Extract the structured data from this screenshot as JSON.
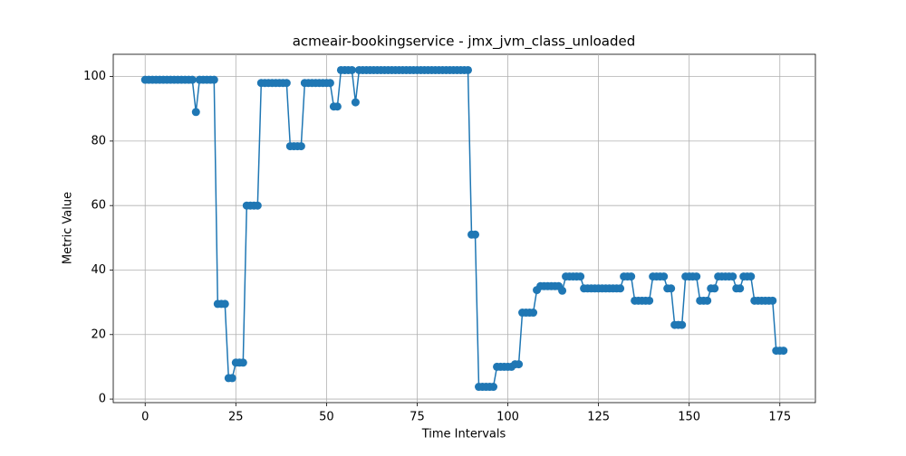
{
  "chart_data": {
    "type": "line",
    "title": "acmeair-bookingservice - jmx_jvm_class_unloaded",
    "xlabel": "Time Intervals",
    "ylabel": "Metric Value",
    "x": [
      0,
      1,
      2,
      3,
      4,
      5,
      6,
      7,
      8,
      9,
      10,
      11,
      12,
      13,
      14,
      15,
      16,
      17,
      18,
      19,
      20,
      21,
      22,
      23,
      24,
      25,
      26,
      27,
      28,
      29,
      30,
      31,
      32,
      33,
      34,
      35,
      36,
      37,
      38,
      39,
      40,
      41,
      42,
      43,
      44,
      45,
      46,
      47,
      48,
      49,
      50,
      51,
      52,
      53,
      54,
      55,
      56,
      57,
      58,
      59,
      60,
      61,
      62,
      63,
      64,
      65,
      66,
      67,
      68,
      69,
      70,
      71,
      72,
      73,
      74,
      75,
      76,
      77,
      78,
      79,
      80,
      81,
      82,
      83,
      84,
      85,
      86,
      87,
      88,
      89,
      90,
      91,
      92,
      93,
      94,
      95,
      96,
      97,
      98,
      99,
      100,
      101,
      102,
      103,
      104,
      105,
      106,
      107,
      108,
      109,
      110,
      111,
      112,
      113,
      114,
      115,
      116,
      117,
      118,
      119,
      120,
      121,
      122,
      123,
      124,
      125,
      126,
      127,
      128,
      129,
      130,
      131,
      132,
      133,
      134,
      135,
      136,
      137,
      138,
      139,
      140,
      141,
      142,
      143,
      144,
      145,
      146,
      147,
      148,
      149,
      150,
      151,
      152,
      153,
      154,
      155,
      156,
      157,
      158,
      159,
      160,
      161,
      162,
      163,
      164,
      165,
      166,
      167,
      168,
      169,
      170,
      171,
      172,
      173,
      174,
      175,
      176
    ],
    "series": [
      {
        "color": "#1f77b4",
        "values": [
          99,
          99,
          99,
          99,
          99,
          99,
          99,
          99,
          99,
          99,
          99,
          99,
          99,
          99,
          89,
          99,
          99,
          99,
          99,
          99,
          29.5,
          29.5,
          29.5,
          6.5,
          6.5,
          11.3,
          11.3,
          11.3,
          60,
          60,
          60,
          60,
          98,
          98,
          98,
          98,
          98,
          98,
          98,
          98,
          78.4,
          78.4,
          78.4,
          78.4,
          98,
          98,
          98,
          98,
          98,
          98,
          98,
          98,
          90.7,
          90.7,
          102,
          102,
          102,
          102,
          92,
          102,
          102,
          102,
          102,
          102,
          102,
          102,
          102,
          102,
          102,
          102,
          102,
          102,
          102,
          102,
          102,
          102,
          102,
          102,
          102,
          102,
          102,
          102,
          102,
          102,
          102,
          102,
          102,
          102,
          102,
          102,
          51,
          51,
          3.8,
          3.8,
          3.8,
          3.8,
          3.8,
          10,
          10,
          10,
          10,
          10,
          10.8,
          10.8,
          26.8,
          26.8,
          26.8,
          26.8,
          33.8,
          35,
          35,
          35,
          35,
          35,
          35,
          33.6,
          38,
          38,
          38,
          38,
          38,
          34.3,
          34.3,
          34.3,
          34.3,
          34.3,
          34.3,
          34.3,
          34.3,
          34.3,
          34.3,
          34.3,
          38,
          38,
          38,
          30.5,
          30.5,
          30.5,
          30.5,
          30.5,
          38,
          38,
          38,
          38,
          34.3,
          34.3,
          23,
          23,
          23,
          38,
          38,
          38,
          38,
          30.5,
          30.5,
          30.5,
          34.3,
          34.3,
          38,
          38,
          38,
          38,
          38,
          34.3,
          34.3,
          38,
          38,
          38,
          30.5,
          30.5,
          30.5,
          30.5,
          30.5,
          30.5,
          15,
          15,
          15
        ]
      }
    ],
    "xlim": [
      -8.8,
      184.8
    ],
    "xticks": [
      0,
      25,
      50,
      75,
      100,
      125,
      150,
      175
    ],
    "ylim": [
      -1.1,
      106.9
    ],
    "yticks": [
      0,
      20,
      40,
      60,
      80,
      100
    ],
    "grid": true
  }
}
